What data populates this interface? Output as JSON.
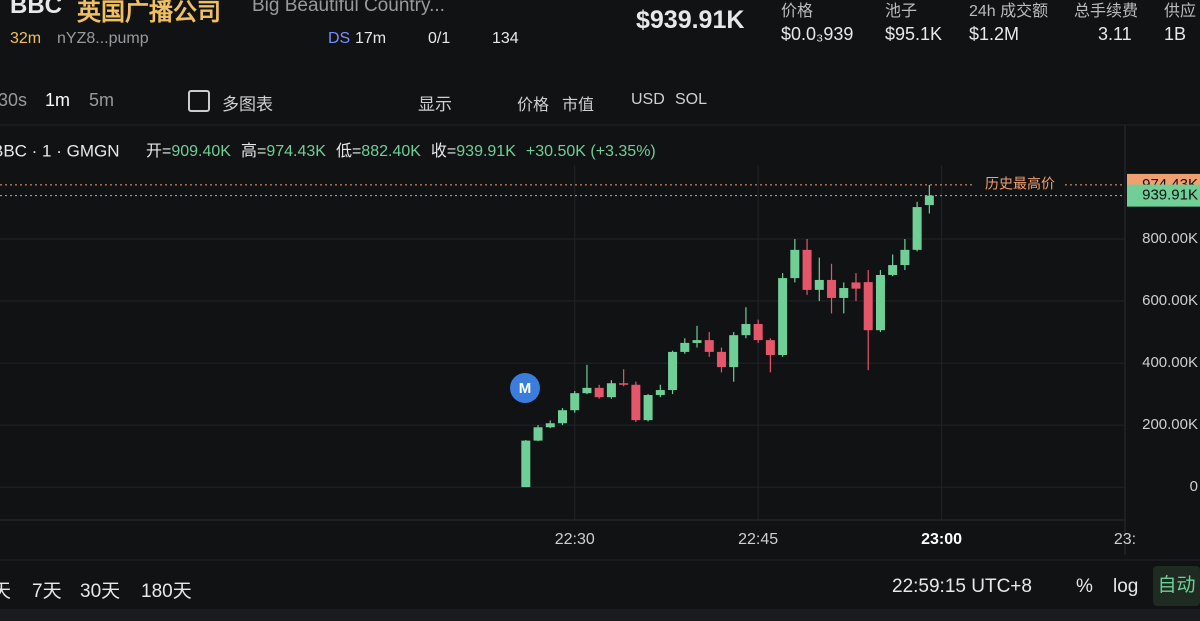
{
  "header": {
    "symbol": "BBC",
    "name": "英国广播公司",
    "en_name": "Big Beautiful Country...",
    "age": "32m",
    "address": "nYZ8...pump",
    "ds": "DS",
    "ds_age": "17m",
    "holders": "0/1",
    "views": "134",
    "mcap": "$939.91K",
    "stats": [
      {
        "label": "价格",
        "value": "$0.0₃939"
      },
      {
        "label": "池子",
        "value": "$95.1K"
      },
      {
        "label": "24h 成交额",
        "value": "$1.2M"
      },
      {
        "label": "总手续费",
        "value": "3.11"
      },
      {
        "label": "供应",
        "value": "1B"
      }
    ]
  },
  "toolbar": {
    "intervals": [
      "30s",
      "1m",
      "5m"
    ],
    "multi": "多图表",
    "display": "显示",
    "price": "价格",
    "mcap": "市值",
    "usd": "USD",
    "sol": "SOL"
  },
  "chart_data": {
    "type": "candlestick",
    "legend": "BBC · 1 · GMGN",
    "ohlc_info": [
      {
        "label": "开=",
        "text": "909.40K"
      },
      {
        "label": "高=",
        "text": "974.43K"
      },
      {
        "label": "低=",
        "text": "882.40K"
      },
      {
        "label": "收=",
        "text": "939.91K"
      }
    ],
    "change": "+30.50K (+3.35%)",
    "marker": "M",
    "ath_label": "历史最高价",
    "up_color": "#6fcf97",
    "down_color": "#e5566b",
    "x": [
      "22:26",
      "22:27",
      "22:28",
      "22:29",
      "22:30",
      "22:31",
      "22:32",
      "22:33",
      "22:34",
      "22:35",
      "22:36",
      "22:37",
      "22:38",
      "22:39",
      "22:40",
      "22:41",
      "22:42",
      "22:43",
      "22:44",
      "22:45",
      "22:46",
      "22:47",
      "22:48",
      "22:49",
      "22:50",
      "22:51",
      "22:52",
      "22:53",
      "22:54",
      "22:55",
      "22:56",
      "22:57",
      "22:58",
      "22:59"
    ],
    "open": [
      0,
      150000,
      193000,
      206000,
      248000,
      303000,
      320000,
      290000,
      335000,
      330000,
      216000,
      297000,
      313000,
      436000,
      465000,
      474000,
      436000,
      387000,
      490000,
      526000,
      474000,
      426000,
      674000,
      765000,
      636000,
      668000,
      610000,
      660000,
      661000,
      506000,
      684000,
      716000,
      765000,
      909400
    ],
    "high": [
      152000,
      200000,
      215000,
      255000,
      310000,
      394000,
      330000,
      345000,
      380000,
      340000,
      300000,
      330000,
      440000,
      480000,
      520000,
      500000,
      450000,
      500000,
      580000,
      540000,
      480000,
      690000,
      800000,
      800000,
      740000,
      720000,
      660000,
      690000,
      700000,
      700000,
      750000,
      800000,
      920000,
      974430
    ],
    "low": [
      0,
      148000,
      190000,
      200000,
      240000,
      300000,
      285000,
      285000,
      325000,
      210000,
      212000,
      290000,
      300000,
      430000,
      450000,
      420000,
      370000,
      340000,
      480000,
      465000,
      370000,
      420000,
      660000,
      620000,
      600000,
      560000,
      560000,
      600000,
      377000,
      500000,
      680000,
      700000,
      760000,
      882400
    ],
    "close": [
      150000,
      193000,
      206000,
      248000,
      303000,
      320000,
      290000,
      335000,
      330000,
      216000,
      297000,
      313000,
      436000,
      465000,
      474000,
      436000,
      387000,
      490000,
      526000,
      474000,
      426000,
      674000,
      765000,
      636000,
      668000,
      610000,
      642000,
      640000,
      506000,
      684000,
      716000,
      765000,
      903000,
      939910
    ],
    "xlim": [
      "21:43",
      "23:15"
    ],
    "xticks": [
      "22:30",
      "22:45",
      "23:00",
      {
        "value": "23:15",
        "label": "23:"
      }
    ],
    "ylim": [
      -106000,
      1087000
    ],
    "yticks": [
      0,
      {
        "value": 200000,
        "label": "200.00K"
      },
      {
        "value": 400000,
        "label": "400.00K"
      },
      {
        "value": 600000,
        "label": "600.00K"
      },
      {
        "value": 800000,
        "label": "800.00K"
      }
    ],
    "price_labels": [
      {
        "value": 974430,
        "label": "974.43K",
        "color": "#f0a070"
      },
      {
        "value": 939910,
        "label": "939.91K",
        "color": "#6fcf97"
      }
    ],
    "grid": true
  },
  "footer": {
    "ranges": [
      "天",
      "7天",
      "30天",
      "180天"
    ],
    "time": "22:59:15 UTC+8",
    "pct": "%",
    "log": "log",
    "auto": "自动"
  }
}
